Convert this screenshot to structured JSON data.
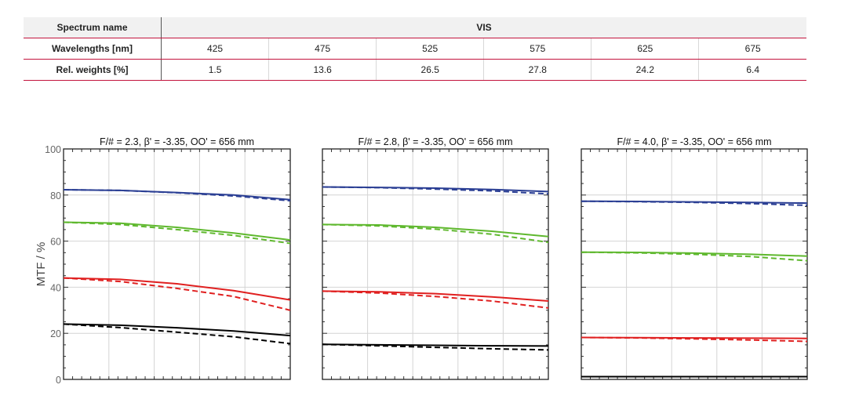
{
  "table": {
    "header_label": "Spectrum name",
    "spectrum": "VIS",
    "wavelength_label": "Wavelengths [nm]",
    "wavelengths": [
      "425",
      "475",
      "525",
      "575",
      "625",
      "675"
    ],
    "weights_label": "Rel. weights [%]",
    "weights": [
      "1.5",
      "13.6",
      "26.5",
      "27.8",
      "24.2",
      "6.4"
    ]
  },
  "colors": {
    "blue": "#2b3f94",
    "green": "#5fb82e",
    "red": "#e02020",
    "black": "#000000",
    "rule": "#c3143d"
  },
  "chart_data": [
    {
      "type": "line",
      "title": "F/# = 2.3, β' = -3.35, OO' = 656 mm",
      "ylabel": "MTF / %",
      "yticks": [
        "0",
        "20",
        "40",
        "60",
        "80",
        "100"
      ],
      "ylim": [
        0,
        100
      ],
      "xlim": [
        0,
        1
      ],
      "grid": true,
      "series": [
        {
          "color": "blue",
          "style": "solid",
          "x": [
            0,
            0.25,
            0.5,
            0.75,
            1
          ],
          "y": [
            82.3,
            82.0,
            81.1,
            80.0,
            78.0
          ]
        },
        {
          "color": "blue",
          "style": "dashed",
          "x": [
            0,
            0.25,
            0.5,
            0.75,
            1
          ],
          "y": [
            82.3,
            82.0,
            81.0,
            79.6,
            77.5
          ]
        },
        {
          "color": "green",
          "style": "solid",
          "x": [
            0,
            0.25,
            0.5,
            0.75,
            1
          ],
          "y": [
            68.2,
            67.8,
            66.0,
            63.5,
            60.5
          ]
        },
        {
          "color": "green",
          "style": "dashed",
          "x": [
            0,
            0.25,
            0.5,
            0.75,
            1
          ],
          "y": [
            68.2,
            67.2,
            65.0,
            62.5,
            59.0
          ]
        },
        {
          "color": "red",
          "style": "solid",
          "x": [
            0,
            0.25,
            0.5,
            0.75,
            1
          ],
          "y": [
            44.0,
            43.4,
            41.5,
            38.5,
            34.5
          ]
        },
        {
          "color": "red",
          "style": "dashed",
          "x": [
            0,
            0.25,
            0.5,
            0.75,
            1
          ],
          "y": [
            44.0,
            42.5,
            39.5,
            36.0,
            30.0
          ]
        },
        {
          "color": "black",
          "style": "solid",
          "x": [
            0,
            0.25,
            0.5,
            0.75,
            1
          ],
          "y": [
            24.0,
            23.5,
            22.4,
            21.0,
            19.0
          ]
        },
        {
          "color": "black",
          "style": "dashed",
          "x": [
            0,
            0.25,
            0.5,
            0.75,
            1
          ],
          "y": [
            24.0,
            22.5,
            20.5,
            18.5,
            15.5
          ]
        }
      ]
    },
    {
      "type": "line",
      "title": "F/# = 2.8, β' = -3.35, OO' = 656 mm",
      "ylim": [
        0,
        100
      ],
      "xlim": [
        0,
        1
      ],
      "grid": true,
      "series": [
        {
          "color": "blue",
          "style": "solid",
          "x": [
            0,
            0.25,
            0.5,
            0.75,
            1
          ],
          "y": [
            83.5,
            83.3,
            83.0,
            82.4,
            81.5
          ]
        },
        {
          "color": "blue",
          "style": "dashed",
          "x": [
            0,
            0.25,
            0.5,
            0.75,
            1
          ],
          "y": [
            83.5,
            83.2,
            82.6,
            81.8,
            80.5
          ]
        },
        {
          "color": "green",
          "style": "solid",
          "x": [
            0,
            0.25,
            0.5,
            0.75,
            1
          ],
          "y": [
            67.2,
            67.0,
            66.0,
            64.3,
            62.0
          ]
        },
        {
          "color": "green",
          "style": "dashed",
          "x": [
            0,
            0.25,
            0.5,
            0.75,
            1
          ],
          "y": [
            67.2,
            66.6,
            65.2,
            63.0,
            59.5
          ]
        },
        {
          "color": "red",
          "style": "solid",
          "x": [
            0,
            0.25,
            0.5,
            0.75,
            1
          ],
          "y": [
            38.3,
            38.0,
            37.2,
            35.8,
            34.0
          ]
        },
        {
          "color": "red",
          "style": "dashed",
          "x": [
            0,
            0.25,
            0.5,
            0.75,
            1
          ],
          "y": [
            38.3,
            37.5,
            36.0,
            34.0,
            31.0
          ]
        },
        {
          "color": "black",
          "style": "solid",
          "x": [
            0,
            0.25,
            0.5,
            0.75,
            1
          ],
          "y": [
            15.2,
            15.0,
            14.8,
            14.6,
            14.5
          ]
        },
        {
          "color": "black",
          "style": "dashed",
          "x": [
            0,
            0.25,
            0.5,
            0.75,
            1
          ],
          "y": [
            15.2,
            14.6,
            13.9,
            13.3,
            12.8
          ]
        }
      ]
    },
    {
      "type": "line",
      "title": "F/# = 4.0, β' = -3.35, OO' = 656 mm",
      "ylim": [
        0,
        100
      ],
      "xlim": [
        0,
        1
      ],
      "grid": true,
      "series": [
        {
          "color": "blue",
          "style": "solid",
          "x": [
            0,
            0.25,
            0.5,
            0.75,
            1
          ],
          "y": [
            77.3,
            77.2,
            77.0,
            76.8,
            76.5
          ]
        },
        {
          "color": "blue",
          "style": "dashed",
          "x": [
            0,
            0.25,
            0.5,
            0.75,
            1
          ],
          "y": [
            77.3,
            77.1,
            76.8,
            76.3,
            75.5
          ]
        },
        {
          "color": "green",
          "style": "solid",
          "x": [
            0,
            0.25,
            0.5,
            0.75,
            1
          ],
          "y": [
            55.2,
            55.1,
            54.8,
            54.3,
            53.5
          ]
        },
        {
          "color": "green",
          "style": "dashed",
          "x": [
            0,
            0.25,
            0.5,
            0.75,
            1
          ],
          "y": [
            55.2,
            54.9,
            54.3,
            53.3,
            51.5
          ]
        },
        {
          "color": "red",
          "style": "solid",
          "x": [
            0,
            0.25,
            0.5,
            0.75,
            1
          ],
          "y": [
            18.2,
            18.1,
            18.0,
            17.9,
            17.8
          ]
        },
        {
          "color": "red",
          "style": "dashed",
          "x": [
            0,
            0.25,
            0.5,
            0.75,
            1
          ],
          "y": [
            18.2,
            18.0,
            17.6,
            17.1,
            16.5
          ]
        },
        {
          "color": "black",
          "style": "solid",
          "x": [
            0,
            0.25,
            0.5,
            0.75,
            1
          ],
          "y": [
            1.2,
            1.2,
            1.2,
            1.2,
            1.2
          ]
        },
        {
          "color": "black",
          "style": "dashed",
          "x": [
            0,
            0.25,
            0.5,
            0.75,
            1
          ],
          "y": [
            1.2,
            1.2,
            1.2,
            1.2,
            1.2
          ]
        }
      ]
    }
  ]
}
